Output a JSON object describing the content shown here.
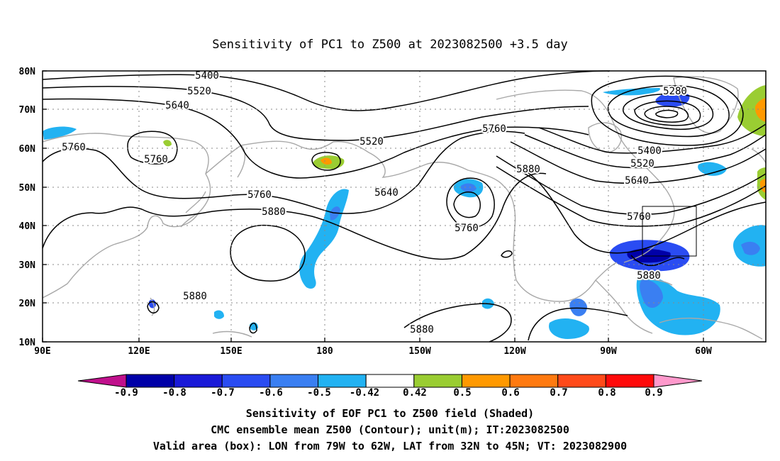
{
  "title": "Sensitivity of PC1 to Z500 at 2023082500 +3.5 day",
  "map": {
    "lat_labels": [
      "80N",
      "70N",
      "60N",
      "50N",
      "40N",
      "30N",
      "20N",
      "10N"
    ],
    "lon_labels": [
      "90E",
      "120E",
      "150E",
      "180",
      "150W",
      "120W",
      "90W",
      "60W"
    ],
    "contour_labels": [
      "5400",
      "5520",
      "5640",
      "5760",
      "5520",
      "5760",
      "5280",
      "5400",
      "5520",
      "5640",
      "5760",
      "5640",
      "5880",
      "5760",
      "5760",
      "5880",
      "5880",
      "5880",
      "5880"
    ],
    "valid_box": {
      "lon_west": "79W",
      "lon_east": "62W",
      "lat_south": "32N",
      "lat_north": "45N"
    }
  },
  "colorbar": {
    "labels": [
      "-0.9",
      "-0.8",
      "-0.7",
      "-0.6",
      "-0.5",
      "-0.42",
      "0.42",
      "0.5",
      "0.6",
      "0.7",
      "0.8",
      "0.9"
    ],
    "colors": [
      "#0000a8",
      "#1a1ad8",
      "#2a4cf2",
      "#3a7ff2",
      "#22b2f2",
      "#ffffff",
      "#9acd32",
      "#ff9900",
      "#ff7a10",
      "#ff4a1a",
      "#ff0a0a"
    ],
    "low_end_color": "#c0108c",
    "high_end_color": "#ff99cc"
  },
  "captions": {
    "line1": "Sensitivity of EOF PC1 to Z500 field (Shaded)",
    "line2": "CMC ensemble mean Z500 (Contour); unit(m); IT:2023082500",
    "line3": "Valid area (box): LON from 79W to 62W, LAT from 32N to 45N; VT: 2023082900"
  }
}
